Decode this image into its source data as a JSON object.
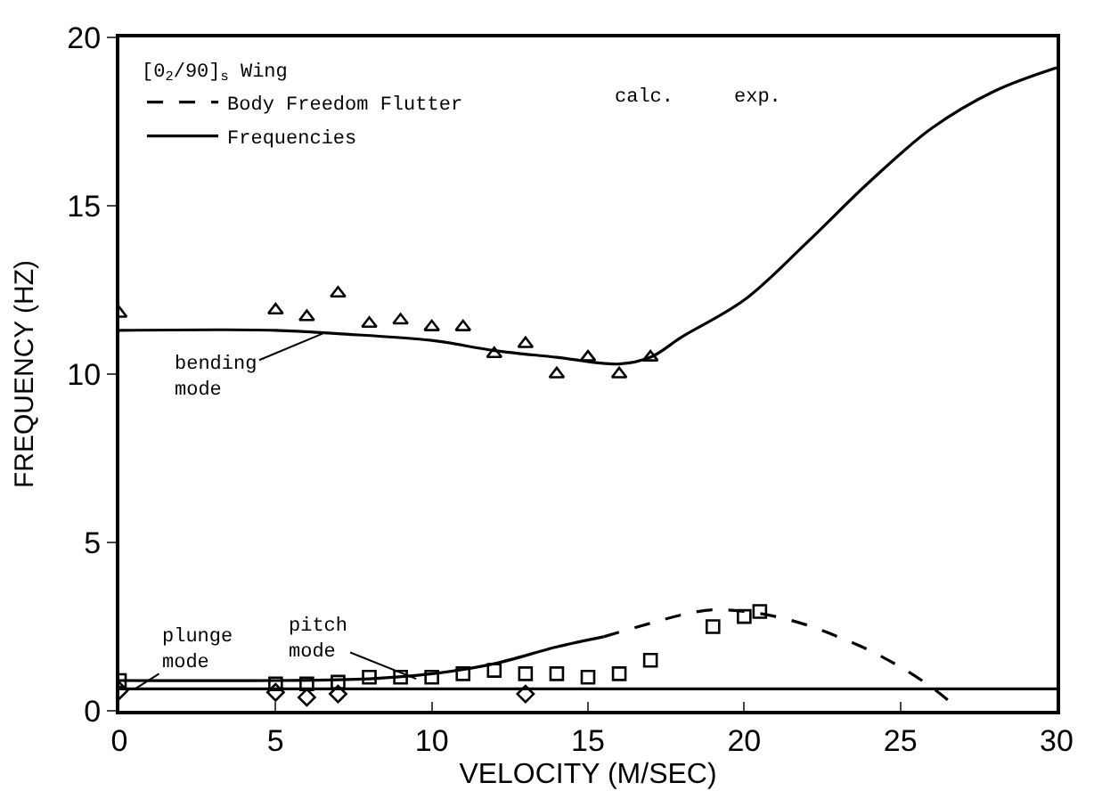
{
  "chart_data": {
    "type": "line",
    "xlabel": "VELOCITY (M/SEC)",
    "ylabel": "FREQUENCY (HZ)",
    "legend_title": "[0$_{2}$/90]$_{s}$ Wing",
    "legend": "top left",
    "xlim": [
      0,
      30
    ],
    "xticks": [
      0,
      5,
      10,
      15,
      20,
      25,
      30
    ],
    "ylim": [
      0,
      20
    ],
    "yticks": [
      0,
      5,
      10,
      15,
      20
    ],
    "series": [
      {
        "name": "Body Freedom Flutter",
        "line_style": "dashed",
        "marker": "none",
        "color": "#000000",
        "x": [
          15.5,
          17,
          18,
          19,
          20,
          21,
          22,
          23,
          24,
          25,
          26,
          26.8
        ],
        "values": [
          2.2,
          2.6,
          2.85,
          3.0,
          2.95,
          2.8,
          2.55,
          2.2,
          1.8,
          1.3,
          0.7,
          0.1
        ]
      },
      {
        "name": "Frequencies",
        "line_style": "solid",
        "marker": "none",
        "color": "#000000",
        "x": [
          0,
          5,
          7,
          10,
          12,
          14,
          16,
          17,
          18,
          20,
          22,
          24,
          26,
          28,
          30
        ],
        "values": [
          11.3,
          11.3,
          11.2,
          11.0,
          10.7,
          10.5,
          10.3,
          10.5,
          11.1,
          12.2,
          13.9,
          15.7,
          17.3,
          18.4,
          19.1
        ]
      },
      {
        "line_style": "solid",
        "marker": "none",
        "color": "#000000",
        "x": [
          0,
          5,
          8,
          10,
          12,
          14,
          15.5
        ],
        "values": [
          0.9,
          0.9,
          0.95,
          1.1,
          1.4,
          1.9,
          2.2
        ]
      },
      {
        "line_style": "solid",
        "marker": "none",
        "color": "#000000",
        "x": [
          0,
          30
        ],
        "values": [
          0.65,
          0.65
        ]
      },
      {
        "type": "scatter",
        "marker": "triangle",
        "color": "#000000",
        "x": [
          0,
          5,
          6,
          7,
          8,
          9,
          10,
          11,
          12,
          13,
          14,
          15,
          16,
          17
        ],
        "values": [
          11.8,
          11.9,
          11.7,
          12.4,
          11.5,
          11.6,
          11.4,
          11.4,
          10.6,
          10.9,
          10.0,
          10.5,
          10.0,
          10.5
        ]
      },
      {
        "type": "scatter",
        "marker": "square",
        "color": "#000000",
        "x": [
          0,
          5,
          6,
          7,
          8,
          9,
          10,
          11,
          12,
          13,
          14,
          15,
          16,
          17,
          19
        ],
        "values": [
          0.9,
          0.8,
          0.8,
          0.85,
          1.0,
          1.0,
          1.0,
          1.1,
          1.2,
          1.1,
          1.1,
          1.0,
          1.1,
          1.5,
          2.5
        ]
      },
      {
        "type": "scatter",
        "marker": "diamond",
        "color": "#000000",
        "x": [
          0,
          5,
          6,
          7,
          13
        ],
        "values": [
          0.6,
          0.55,
          0.4,
          0.5,
          0.5
        ]
      },
      {
        "type": "scatter",
        "marker": "square",
        "color": "#000000",
        "x": [
          20,
          20.5
        ],
        "values": [
          2.8,
          2.95
        ]
      }
    ],
    "annotations": [
      "calc.",
      "exp.",
      {
        "text": "bending\nmode",
        "x": 6.5,
        "y": 11.2
      },
      {
        "text": "pitch\nmode",
        "x": 9.5,
        "y": 0.95
      },
      {
        "text": "plunge\nmode",
        "x": 0.5,
        "y": 0.65
      }
    ]
  }
}
